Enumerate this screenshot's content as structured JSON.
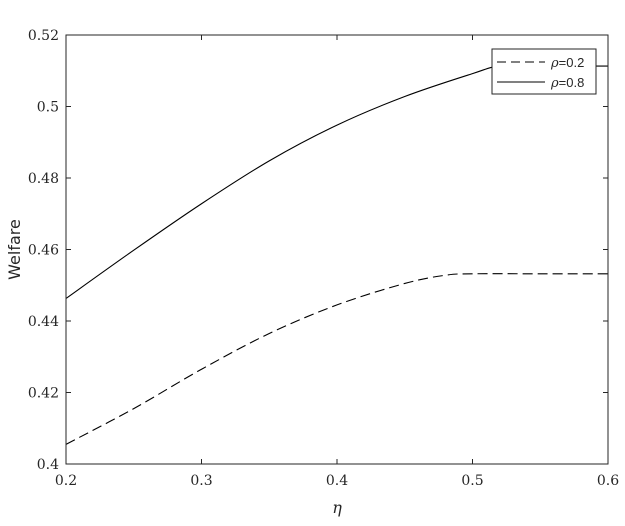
{
  "chart_data": {
    "type": "line",
    "title": "",
    "xlabel": "η",
    "ylabel": "Welfare",
    "xlim": [
      0.2,
      0.6
    ],
    "ylim": [
      0.4,
      0.52
    ],
    "xticks": [
      0.2,
      0.3,
      0.4,
      0.5,
      0.6
    ],
    "xtick_labels": [
      "0.2",
      "0.3",
      "0.4",
      "0.5",
      "0.6"
    ],
    "yticks": [
      0.4,
      0.42,
      0.44,
      0.46,
      0.48,
      0.5,
      0.52
    ],
    "ytick_labels": [
      "0.4",
      "0.42",
      "0.44",
      "0.46",
      "0.48",
      "0.5",
      "0.52"
    ],
    "grid": false,
    "legend_position": "top-right",
    "series": [
      {
        "name_symbol": "ρ",
        "name_value": "=0.2",
        "style": "dashed",
        "color": "#000000",
        "points": [
          [
            0.2,
            0.4055
          ],
          [
            0.25,
            0.4155
          ],
          [
            0.3,
            0.4265
          ],
          [
            0.35,
            0.4365
          ],
          [
            0.4,
            0.4445
          ],
          [
            0.45,
            0.4505
          ],
          [
            0.48,
            0.4528
          ],
          [
            0.5,
            0.4532
          ],
          [
            0.55,
            0.4532
          ],
          [
            0.6,
            0.4532
          ]
        ]
      },
      {
        "name_symbol": "ρ",
        "name_value": "=0.8",
        "style": "solid",
        "color": "#000000",
        "points": [
          [
            0.2,
            0.4463
          ],
          [
            0.25,
            0.4598
          ],
          [
            0.3,
            0.4728
          ],
          [
            0.35,
            0.4848
          ],
          [
            0.4,
            0.4948
          ],
          [
            0.45,
            0.5028
          ],
          [
            0.5,
            0.5092
          ],
          [
            0.52,
            0.5113
          ],
          [
            0.55,
            0.5113
          ],
          [
            0.6,
            0.5113
          ]
        ]
      }
    ]
  }
}
